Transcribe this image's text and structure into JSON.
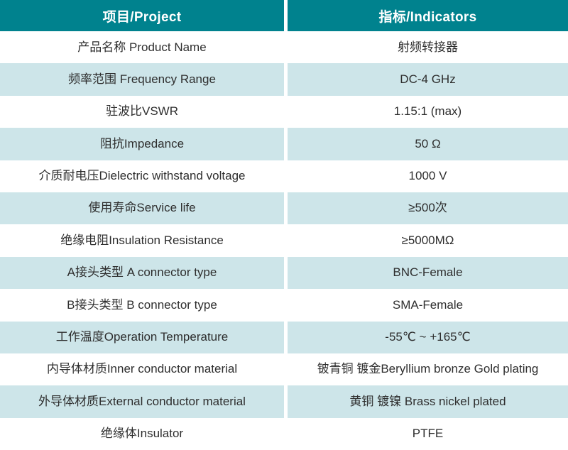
{
  "colors": {
    "header_bg": "#00828E",
    "alt_row_bg": "#CDE5E9",
    "header_text": "#FFFFFF",
    "body_text": "#2E2E2E"
  },
  "table": {
    "header": {
      "project_label": "项目/Project",
      "indicators_label": "指标/Indicators"
    },
    "rows": [
      {
        "project": "产品名称 Product Name",
        "indicator": "射频转接器"
      },
      {
        "project": "频率范围 Frequency Range",
        "indicator": "DC-4 GHz"
      },
      {
        "project": "驻波比VSWR",
        "indicator": "1.15:1 (max)"
      },
      {
        "project": "阻抗Impedance",
        "indicator": "50 Ω"
      },
      {
        "project": "介质耐电压Dielectric withstand voltage",
        "indicator": "1000 V"
      },
      {
        "project": "使用寿命Service life",
        "indicator": "≥500次"
      },
      {
        "project": "绝缘电阻Insulation Resistance",
        "indicator": "≥5000MΩ"
      },
      {
        "project": "A接头类型 A connector type",
        "indicator": "BNC-Female"
      },
      {
        "project": "B接头类型 B connector type",
        "indicator": "SMA-Female"
      },
      {
        "project": "工作温度Operation Temperature",
        "indicator": "-55℃ ~ +165℃"
      },
      {
        "project": "内导体材质Inner conductor material",
        "indicator": "铍青铜 镀金Beryllium bronze Gold plating"
      },
      {
        "project": "外导体材质External conductor material",
        "indicator": "黄铜 镀镍 Brass nickel plated"
      },
      {
        "project": "绝缘体Insulator",
        "indicator": "PTFE"
      }
    ]
  }
}
